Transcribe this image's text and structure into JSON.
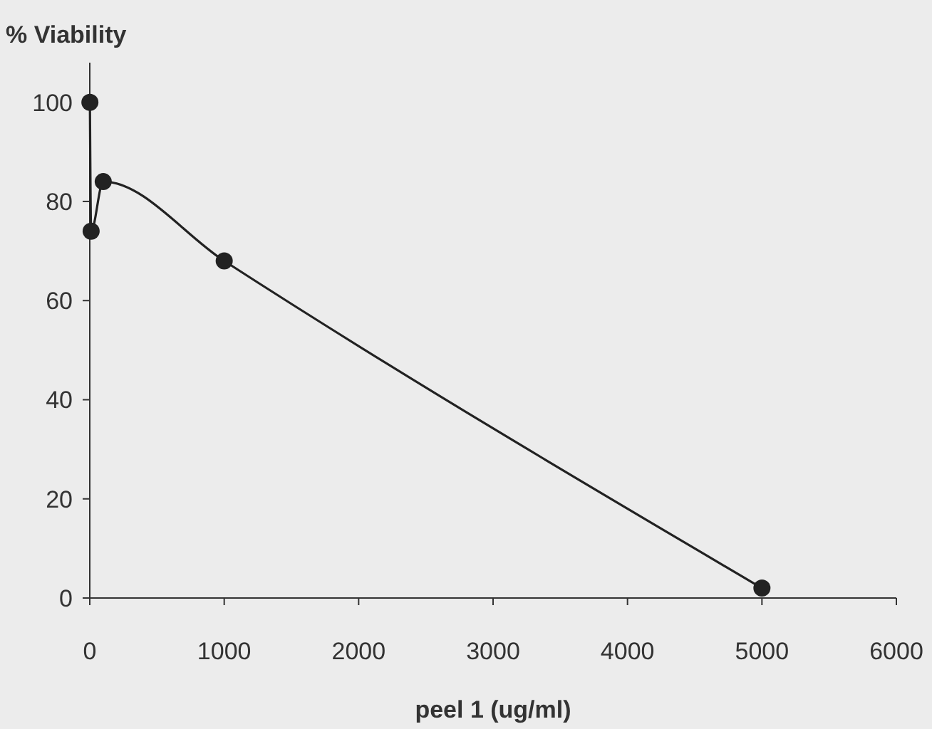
{
  "chart_data": {
    "type": "line",
    "ylabel": "% Viability",
    "xlabel": "peel 1 (ug/ml)",
    "x": [
      1,
      10,
      100,
      1000,
      5000
    ],
    "series": [
      {
        "color": "#222222",
        "values": [
          100,
          74,
          84,
          68,
          2
        ]
      }
    ],
    "xlim": [
      0,
      6000
    ],
    "xticks": [
      0,
      1000,
      2000,
      3000,
      4000,
      5000,
      6000
    ],
    "ylim": [
      0,
      108
    ],
    "yticks": [
      0,
      20,
      40,
      60,
      80,
      100
    ],
    "grid": false,
    "marker": "circle",
    "line_style": "solid"
  }
}
